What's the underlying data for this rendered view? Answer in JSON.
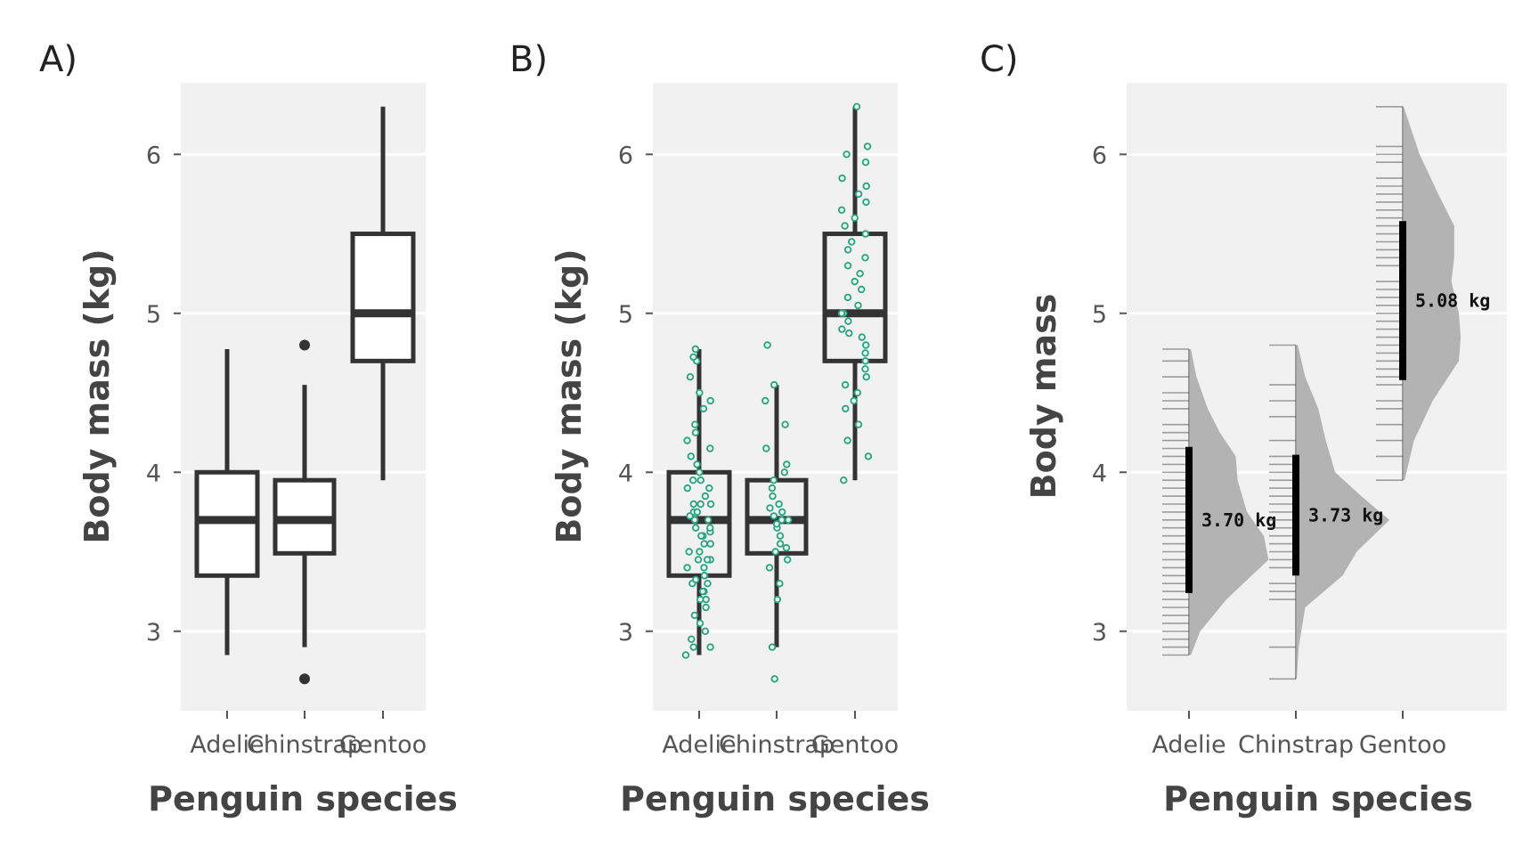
{
  "colors": {
    "panel_bg": "#f1f1f1",
    "gridline": "#ffffff",
    "box_stroke": "#333333",
    "box_fill": "#ffffff",
    "jitter_point": "#2aa37f",
    "density_fill": "#b3b3b3",
    "rug": "#555555",
    "text": "#444444"
  },
  "chart_data": [
    {
      "panel_label": "A)",
      "type": "boxplot",
      "xlabel": "Penguin species",
      "ylabel": "Body mass (kg)",
      "categories": [
        "Adelie",
        "Chinstrap",
        "Gentoo"
      ],
      "ylim": [
        2.5,
        6.45
      ],
      "yticks": [
        3,
        4,
        5,
        6
      ],
      "grid": true,
      "boxes": [
        {
          "name": "Adelie",
          "min": 2.85,
          "q1": 3.35,
          "median": 3.7,
          "q3": 4.0,
          "max": 4.775,
          "outliers": []
        },
        {
          "name": "Chinstrap",
          "min": 2.9,
          "q1": 3.49,
          "median": 3.7,
          "q3": 3.95,
          "max": 4.55,
          "outliers": [
            4.8,
            2.7
          ]
        },
        {
          "name": "Gentoo",
          "min": 3.95,
          "q1": 4.7,
          "median": 5.0,
          "q3": 5.5,
          "max": 6.3,
          "outliers": []
        }
      ]
    },
    {
      "panel_label": "B)",
      "type": "boxplot-jitter",
      "xlabel": "Penguin species",
      "ylabel": "Body mass (kg)",
      "categories": [
        "Adelie",
        "Chinstrap",
        "Gentoo"
      ],
      "ylim": [
        2.5,
        6.45
      ],
      "yticks": [
        3,
        4,
        5,
        6
      ],
      "grid": true,
      "boxes": [
        {
          "name": "Adelie",
          "min": 2.85,
          "q1": 3.35,
          "median": 3.7,
          "q3": 4.0,
          "max": 4.775,
          "outliers": []
        },
        {
          "name": "Chinstrap",
          "min": 2.9,
          "q1": 3.49,
          "median": 3.7,
          "q3": 3.95,
          "max": 4.55,
          "outliers": [
            4.8,
            2.7
          ]
        },
        {
          "name": "Gentoo",
          "min": 3.95,
          "q1": 4.7,
          "median": 5.0,
          "q3": 5.5,
          "max": 6.3,
          "outliers": []
        }
      ],
      "points": {
        "Adelie": [
          2.85,
          2.9,
          2.9,
          2.95,
          3.0,
          3.05,
          3.1,
          3.15,
          3.2,
          3.2,
          3.25,
          3.25,
          3.3,
          3.3,
          3.325,
          3.35,
          3.35,
          3.4,
          3.4,
          3.45,
          3.45,
          3.45,
          3.5,
          3.5,
          3.55,
          3.55,
          3.6,
          3.6,
          3.625,
          3.65,
          3.65,
          3.7,
          3.7,
          3.7,
          3.725,
          3.75,
          3.75,
          3.8,
          3.8,
          3.8,
          3.85,
          3.9,
          3.9,
          3.95,
          3.95,
          4.0,
          4.05,
          4.1,
          4.15,
          4.2,
          4.25,
          4.3,
          4.4,
          4.45,
          4.5,
          4.6,
          4.7,
          4.725,
          4.775
        ],
        "Chinstrap": [
          2.7,
          2.9,
          3.2,
          3.3,
          3.4,
          3.45,
          3.5,
          3.525,
          3.55,
          3.6,
          3.65,
          3.675,
          3.7,
          3.7,
          3.725,
          3.75,
          3.775,
          3.8,
          3.85,
          3.9,
          3.95,
          4.0,
          4.05,
          4.15,
          4.3,
          4.45,
          4.55,
          4.8
        ],
        "Gentoo": [
          3.95,
          4.1,
          4.2,
          4.3,
          4.4,
          4.45,
          4.5,
          4.55,
          4.6,
          4.65,
          4.7,
          4.75,
          4.8,
          4.85,
          4.875,
          4.9,
          4.95,
          5.0,
          5.0,
          5.05,
          5.1,
          5.15,
          5.2,
          5.25,
          5.3,
          5.35,
          5.4,
          5.45,
          5.5,
          5.55,
          5.6,
          5.65,
          5.7,
          5.75,
          5.8,
          5.85,
          5.95,
          6.0,
          6.05,
          6.3
        ]
      }
    },
    {
      "panel_label": "C)",
      "type": "raincloud",
      "xlabel": "Penguin species",
      "ylabel": "Body mass",
      "categories": [
        "Adelie",
        "Chinstrap",
        "Gentoo"
      ],
      "ylim": [
        2.5,
        6.45
      ],
      "yticks": [
        3,
        4,
        5,
        6
      ],
      "grid": true,
      "groups": [
        {
          "name": "Adelie",
          "mean_label": "3.70 kg",
          "interval": [
            3.24,
            4.16
          ],
          "range": [
            2.85,
            4.775
          ],
          "rug": [
            2.85,
            2.9,
            2.95,
            3.0,
            3.05,
            3.1,
            3.15,
            3.2,
            3.25,
            3.3,
            3.35,
            3.4,
            3.45,
            3.5,
            3.55,
            3.6,
            3.65,
            3.7,
            3.75,
            3.8,
            3.85,
            3.9,
            3.95,
            4.0,
            4.05,
            4.1,
            4.15,
            4.2,
            4.25,
            4.3,
            4.4,
            4.45,
            4.5,
            4.6,
            4.7,
            4.775
          ],
          "density": [
            [
              2.85,
              0.02
            ],
            [
              3.0,
              0.12
            ],
            [
              3.2,
              0.4
            ],
            [
              3.45,
              0.85
            ],
            [
              3.6,
              0.8
            ],
            [
              3.75,
              0.62
            ],
            [
              3.95,
              0.52
            ],
            [
              4.1,
              0.5
            ],
            [
              4.25,
              0.33
            ],
            [
              4.4,
              0.2
            ],
            [
              4.6,
              0.08
            ],
            [
              4.775,
              0.02
            ]
          ]
        },
        {
          "name": "Chinstrap",
          "mean_label": "3.73 kg",
          "interval": [
            3.35,
            4.11
          ],
          "range": [
            2.7,
            4.8
          ],
          "rug": [
            2.7,
            2.9,
            3.2,
            3.25,
            3.3,
            3.4,
            3.45,
            3.5,
            3.55,
            3.6,
            3.65,
            3.7,
            3.75,
            3.8,
            3.85,
            3.9,
            3.95,
            4.0,
            4.05,
            4.1,
            4.2,
            4.35,
            4.45,
            4.55,
            4.8
          ],
          "density": [
            [
              2.7,
              0.01
            ],
            [
              2.9,
              0.03
            ],
            [
              3.15,
              0.1
            ],
            [
              3.35,
              0.5
            ],
            [
              3.5,
              0.65
            ],
            [
              3.7,
              1.0
            ],
            [
              3.85,
              0.7
            ],
            [
              4.0,
              0.42
            ],
            [
              4.2,
              0.32
            ],
            [
              4.4,
              0.24
            ],
            [
              4.6,
              0.1
            ],
            [
              4.8,
              0.02
            ]
          ]
        },
        {
          "name": "Gentoo",
          "mean_label": "5.08 kg",
          "interval": [
            4.58,
            5.58
          ],
          "range": [
            3.95,
            6.3
          ],
          "rug": [
            3.95,
            4.1,
            4.2,
            4.3,
            4.4,
            4.45,
            4.55,
            4.6,
            4.65,
            4.7,
            4.75,
            4.8,
            4.85,
            4.9,
            4.95,
            5.0,
            5.05,
            5.1,
            5.15,
            5.2,
            5.3,
            5.35,
            5.4,
            5.45,
            5.5,
            5.55,
            5.6,
            5.65,
            5.7,
            5.75,
            5.8,
            5.85,
            5.95,
            6.0,
            6.05,
            6.3
          ],
          "density": [
            [
              3.95,
              0.02
            ],
            [
              4.2,
              0.12
            ],
            [
              4.45,
              0.32
            ],
            [
              4.7,
              0.6
            ],
            [
              4.85,
              0.62
            ],
            [
              5.0,
              0.6
            ],
            [
              5.2,
              0.52
            ],
            [
              5.35,
              0.55
            ],
            [
              5.55,
              0.55
            ],
            [
              5.75,
              0.38
            ],
            [
              6.0,
              0.18
            ],
            [
              6.3,
              0.01
            ]
          ]
        }
      ]
    }
  ]
}
